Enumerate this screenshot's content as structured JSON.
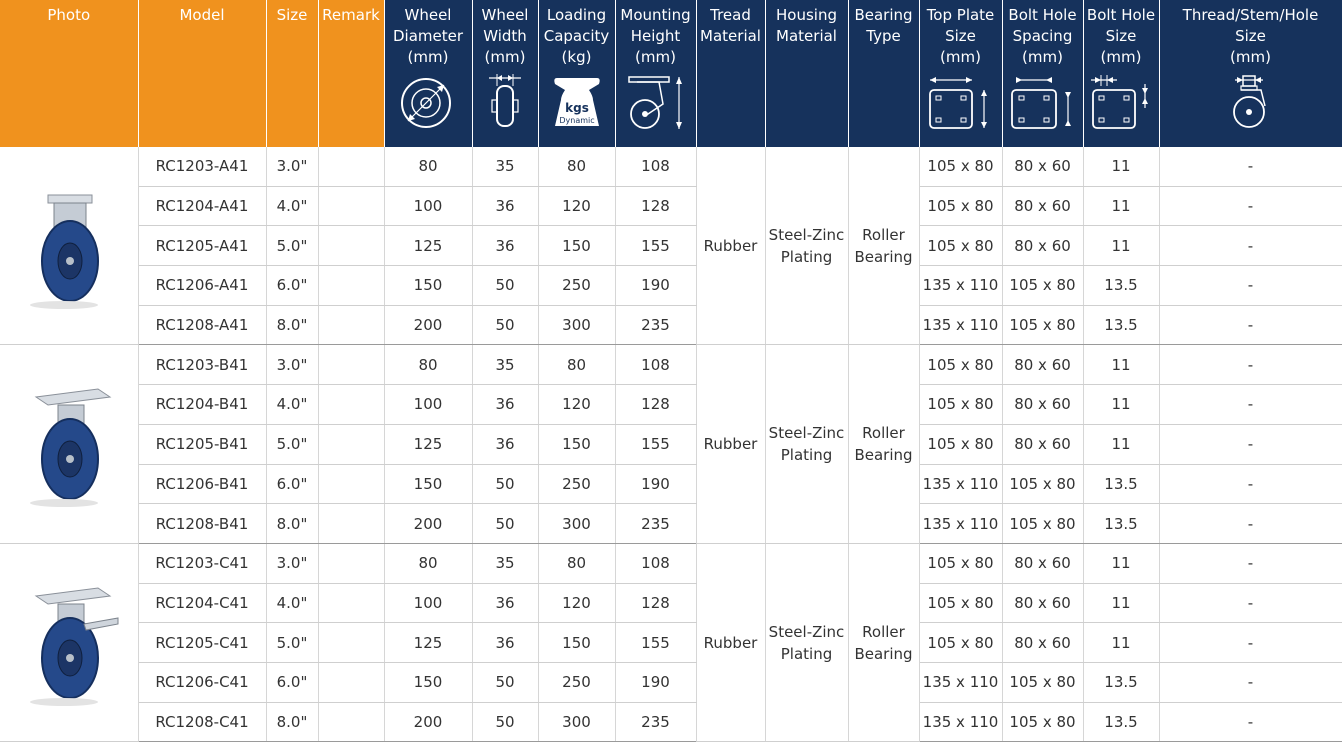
{
  "headers": {
    "photo": "Photo",
    "model": "Model",
    "size": "Size",
    "remark": "Remark",
    "wheel_diameter": [
      "Wheel",
      "Diameter",
      "(mm)"
    ],
    "wheel_width": [
      "Wheel",
      "Width",
      "(mm)"
    ],
    "loading_capacity": [
      "Loading",
      "Capacity",
      "(kg)"
    ],
    "mounting_height": [
      "Mounting",
      "Height",
      "(mm)"
    ],
    "tread_material": [
      "Tread",
      "Material"
    ],
    "housing_material": [
      "Housing",
      "Material"
    ],
    "bearing_type": [
      "Bearing",
      "Type"
    ],
    "top_plate_size": [
      "Top Plate",
      "Size",
      "(mm)"
    ],
    "bolt_hole_spacing": [
      "Bolt Hole",
      "Spacing",
      "(mm)"
    ],
    "bolt_hole_size": [
      "Bolt Hole",
      "Size",
      "(mm)"
    ],
    "thread_stem_hole": [
      "Thread/Stem/Hole",
      "Size",
      "(mm)"
    ],
    "kgs_icon_text": [
      "kgs",
      "Dynamic"
    ]
  },
  "colors": {
    "orange_header": "#f0921e",
    "navy_header": "#16325c"
  },
  "groups": [
    {
      "photo_icon": "fixed-caster-icon",
      "tread": "Rubber",
      "housing": [
        "Steel-Zinc",
        "Plating"
      ],
      "bearing": [
        "Roller",
        "Bearing"
      ],
      "rows": [
        {
          "model": "RC1203-A41",
          "size": "3.0\"",
          "diameter": "80",
          "width": "35",
          "capacity": "80",
          "height": "108",
          "plate": "105 x 80",
          "spacing": "80 x 60",
          "hole": "11",
          "thread": "-"
        },
        {
          "model": "RC1204-A41",
          "size": "4.0\"",
          "diameter": "100",
          "width": "36",
          "capacity": "120",
          "height": "128",
          "plate": "105 x 80",
          "spacing": "80 x 60",
          "hole": "11",
          "thread": "-"
        },
        {
          "model": "RC1205-A41",
          "size": "5.0\"",
          "diameter": "125",
          "width": "36",
          "capacity": "150",
          "height": "155",
          "plate": "105 x 80",
          "spacing": "80 x 60",
          "hole": "11",
          "thread": "-"
        },
        {
          "model": "RC1206-A41",
          "size": "6.0\"",
          "diameter": "150",
          "width": "50",
          "capacity": "250",
          "height": "190",
          "plate": "135 x 110",
          "spacing": "105 x 80",
          "hole": "13.5",
          "thread": "-"
        },
        {
          "model": "RC1208-A41",
          "size": "8.0\"",
          "diameter": "200",
          "width": "50",
          "capacity": "300",
          "height": "235",
          "plate": "135 x 110",
          "spacing": "105 x 80",
          "hole": "13.5",
          "thread": "-"
        }
      ]
    },
    {
      "photo_icon": "swivel-caster-icon",
      "tread": "Rubber",
      "housing": [
        "Steel-Zinc",
        "Plating"
      ],
      "bearing": [
        "Roller",
        "Bearing"
      ],
      "rows": [
        {
          "model": "RC1203-B41",
          "size": "3.0\"",
          "diameter": "80",
          "width": "35",
          "capacity": "80",
          "height": "108",
          "plate": "105 x 80",
          "spacing": "80 x 60",
          "hole": "11",
          "thread": "-"
        },
        {
          "model": "RC1204-B41",
          "size": "4.0\"",
          "diameter": "100",
          "width": "36",
          "capacity": "120",
          "height": "128",
          "plate": "105 x 80",
          "spacing": "80 x 60",
          "hole": "11",
          "thread": "-"
        },
        {
          "model": "RC1205-B41",
          "size": "5.0\"",
          "diameter": "125",
          "width": "36",
          "capacity": "150",
          "height": "155",
          "plate": "105 x 80",
          "spacing": "80 x 60",
          "hole": "11",
          "thread": "-"
        },
        {
          "model": "RC1206-B41",
          "size": "6.0\"",
          "diameter": "150",
          "width": "50",
          "capacity": "250",
          "height": "190",
          "plate": "135 x 110",
          "spacing": "105 x 80",
          "hole": "13.5",
          "thread": "-"
        },
        {
          "model": "RC1208-B41",
          "size": "8.0\"",
          "diameter": "200",
          "width": "50",
          "capacity": "300",
          "height": "235",
          "plate": "135 x 110",
          "spacing": "105 x 80",
          "hole": "13.5",
          "thread": "-"
        }
      ]
    },
    {
      "photo_icon": "swivel-brake-caster-icon",
      "tread": "Rubber",
      "housing": [
        "Steel-Zinc",
        "Plating"
      ],
      "bearing": [
        "Roller",
        "Bearing"
      ],
      "rows": [
        {
          "model": "RC1203-C41",
          "size": "3.0\"",
          "diameter": "80",
          "width": "35",
          "capacity": "80",
          "height": "108",
          "plate": "105 x 80",
          "spacing": "80 x 60",
          "hole": "11",
          "thread": "-"
        },
        {
          "model": "RC1204-C41",
          "size": "4.0\"",
          "diameter": "100",
          "width": "36",
          "capacity": "120",
          "height": "128",
          "plate": "105 x 80",
          "spacing": "80 x 60",
          "hole": "11",
          "thread": "-"
        },
        {
          "model": "RC1205-C41",
          "size": "5.0\"",
          "diameter": "125",
          "width": "36",
          "capacity": "150",
          "height": "155",
          "plate": "105 x 80",
          "spacing": "80 x 60",
          "hole": "11",
          "thread": "-"
        },
        {
          "model": "RC1206-C41",
          "size": "6.0\"",
          "diameter": "150",
          "width": "50",
          "capacity": "250",
          "height": "190",
          "plate": "135 x 110",
          "spacing": "105 x 80",
          "hole": "13.5",
          "thread": "-"
        },
        {
          "model": "RC1208-C41",
          "size": "8.0\"",
          "diameter": "200",
          "width": "50",
          "capacity": "300",
          "height": "235",
          "plate": "135 x 110",
          "spacing": "105 x 80",
          "hole": "13.5",
          "thread": "-"
        }
      ]
    }
  ]
}
